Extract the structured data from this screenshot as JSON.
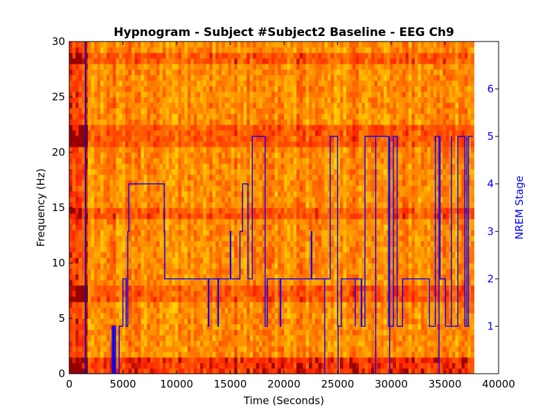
{
  "chart_data": {
    "type": "heatmap",
    "title": "Hypnogram - Subject #Subject2 Baseline - EEG Ch9",
    "xlabel": "Time (Seconds)",
    "ylabel": "Frequency (Hz)",
    "y2label": "NREM Stage",
    "xlim": [
      0,
      40000
    ],
    "ylim": [
      0,
      30
    ],
    "y2lim": [
      0,
      7
    ],
    "xticks": [
      0,
      5000,
      10000,
      15000,
      20000,
      25000,
      30000,
      35000,
      40000
    ],
    "yticks": [
      0,
      5,
      10,
      15,
      20,
      25,
      30
    ],
    "y2ticks": [
      1,
      2,
      3,
      4,
      5,
      6
    ],
    "spectrogram_xrange": [
      0,
      37700
    ],
    "spectrogram_colormap": "autumn",
    "strong_power_bands_hz": [
      [
        6.5,
        8
      ],
      [
        20.5,
        22.5
      ],
      [
        14,
        15
      ],
      [
        28,
        29
      ]
    ],
    "series": [
      {
        "color": "#0000ff",
        "x": [
          0,
          1550,
          1550,
          4000,
          4000,
          4100,
          4100,
          4200,
          4200,
          4300,
          4300,
          4650,
          4650,
          5000,
          5000,
          5300,
          5300,
          5450,
          5450,
          5550,
          5550,
          8850,
          8850,
          8900,
          8900,
          12950,
          12950,
          13000,
          13000,
          13850,
          13850,
          13900,
          13900,
          15000,
          15000,
          15050,
          15050,
          15900,
          15900,
          16150,
          16150,
          16650,
          16650,
          17050,
          17050,
          18250,
          18250,
          18450,
          18450,
          19650,
          19650,
          19700,
          19700,
          22550,
          22550,
          22600,
          22600,
          24300,
          24300,
          25000,
          25000,
          25350,
          25350,
          27200,
          27200,
          27550,
          27550,
          29750,
          29750,
          30200,
          30200,
          30550,
          30550,
          31050,
          31050,
          33550,
          33550,
          34100,
          34100,
          34550,
          34550,
          35050,
          35050,
          36200,
          36200,
          36850,
          36850,
          37200,
          37200,
          37600
        ],
        "values": [
          0,
          0,
          0,
          0,
          1,
          1,
          0,
          0,
          1,
          1,
          0,
          0,
          1,
          1,
          2,
          2,
          1,
          1,
          3,
          3,
          4,
          4,
          3,
          3,
          2,
          2,
          1,
          1,
          2,
          2,
          1,
          1,
          2,
          2,
          3,
          3,
          2,
          2,
          3,
          3,
          4,
          4,
          2,
          2,
          5,
          5,
          1,
          1,
          2,
          2,
          1,
          1,
          2,
          2,
          3,
          3,
          2,
          2,
          5,
          5,
          1,
          1,
          2,
          2,
          1,
          1,
          5,
          5,
          1,
          1,
          5,
          5,
          1,
          1,
          2,
          2,
          1,
          1,
          5,
          5,
          2,
          2,
          1,
          1,
          5,
          5,
          1,
          1,
          5,
          5
        ]
      }
    ],
    "series_spikes": [
      {
        "x": 1500,
        "from": 0,
        "to": 7
      },
      {
        "x": 23800,
        "from": 2,
        "to": 0
      },
      {
        "x": 25050,
        "from": 1,
        "to": 0
      },
      {
        "x": 26650,
        "from": 2,
        "to": 1
      },
      {
        "x": 27250,
        "from": 2,
        "to": 1
      },
      {
        "x": 28550,
        "from": 5,
        "to": 0
      },
      {
        "x": 29850,
        "from": 5,
        "to": 0
      },
      {
        "x": 34450,
        "from": 5,
        "to": 0
      },
      {
        "x": 35600,
        "from": 5,
        "to": 1
      },
      {
        "x": 37050,
        "from": 5,
        "to": 1
      }
    ]
  }
}
